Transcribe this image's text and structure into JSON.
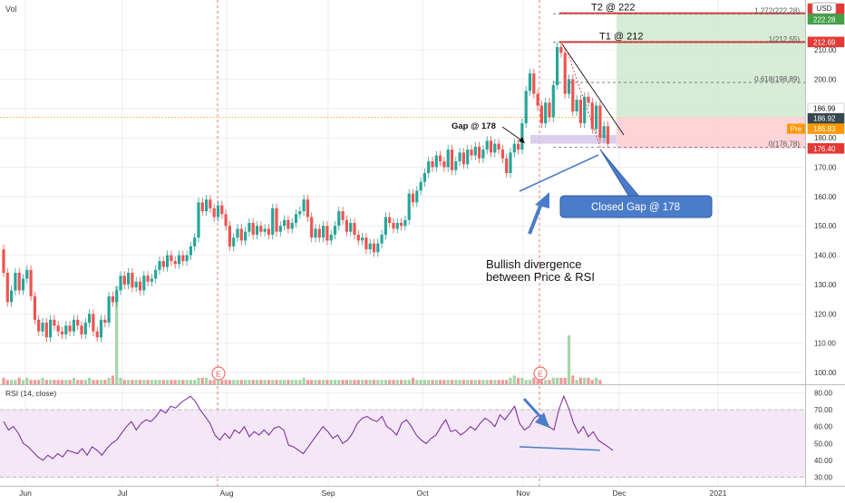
{
  "header": {
    "vol_label": "Vol",
    "currency": "USD"
  },
  "chart_data": {
    "type": "candlestick",
    "x_tick_labels": [
      "Jun",
      "Jul",
      "Aug",
      "Sep",
      "Oct",
      "Nov",
      "Dec",
      "2021"
    ],
    "y_tick_labels": [
      "100.00",
      "110.00",
      "120.00",
      "130.00",
      "140.00",
      "150.00",
      "160.00",
      "170.00",
      "180.00",
      "190.00",
      "200.00",
      "210.00"
    ],
    "ylim": [
      96,
      227
    ],
    "grid": true,
    "candles": [
      [
        142,
        134
      ],
      [
        134,
        124
      ],
      [
        124,
        128
      ],
      [
        128,
        134
      ],
      [
        134,
        128
      ],
      [
        128,
        132
      ],
      [
        132,
        135
      ],
      [
        135,
        126
      ],
      [
        126,
        118
      ],
      [
        118,
        114
      ],
      [
        114,
        117
      ],
      [
        117,
        112
      ],
      [
        112,
        118
      ],
      [
        118,
        116
      ],
      [
        116,
        114
      ],
      [
        114,
        113
      ],
      [
        113,
        116
      ],
      [
        116,
        114
      ],
      [
        114,
        118
      ],
      [
        118,
        116
      ],
      [
        116,
        113
      ],
      [
        113,
        117
      ],
      [
        117,
        120
      ],
      [
        120,
        114
      ],
      [
        114,
        112
      ],
      [
        112,
        118
      ],
      [
        118,
        117
      ],
      [
        117,
        126
      ],
      [
        126,
        124
      ],
      [
        124,
        128
      ],
      [
        128,
        133
      ],
      [
        133,
        130
      ],
      [
        130,
        134
      ],
      [
        134,
        129
      ],
      [
        129,
        131
      ],
      [
        131,
        128
      ],
      [
        128,
        133
      ],
      [
        133,
        131
      ],
      [
        131,
        132
      ],
      [
        132,
        135
      ],
      [
        135,
        138
      ],
      [
        138,
        136
      ],
      [
        136,
        140
      ],
      [
        140,
        138
      ],
      [
        138,
        137
      ],
      [
        137,
        140
      ],
      [
        140,
        138
      ],
      [
        138,
        140
      ],
      [
        140,
        143
      ],
      [
        143,
        146
      ],
      [
        146,
        158
      ],
      [
        158,
        155
      ],
      [
        155,
        159
      ],
      [
        159,
        156
      ],
      [
        156,
        153
      ],
      [
        153,
        157
      ],
      [
        157,
        154
      ],
      [
        154,
        150
      ],
      [
        150,
        143
      ],
      [
        143,
        146
      ],
      [
        146,
        149
      ],
      [
        149,
        145
      ],
      [
        145,
        148
      ],
      [
        148,
        151
      ],
      [
        151,
        147
      ],
      [
        147,
        150
      ],
      [
        150,
        148
      ],
      [
        148,
        149
      ],
      [
        149,
        147
      ],
      [
        147,
        156
      ],
      [
        156,
        148
      ],
      [
        148,
        150
      ],
      [
        150,
        152
      ],
      [
        152,
        149
      ],
      [
        149,
        151
      ],
      [
        151,
        154
      ],
      [
        154,
        155
      ],
      [
        155,
        159
      ],
      [
        159,
        153
      ],
      [
        153,
        146
      ],
      [
        146,
        149
      ],
      [
        149,
        146
      ],
      [
        146,
        150
      ],
      [
        150,
        145
      ],
      [
        145,
        147
      ],
      [
        147,
        150
      ],
      [
        150,
        155
      ],
      [
        155,
        152
      ],
      [
        152,
        148
      ],
      [
        148,
        151
      ],
      [
        151,
        147
      ],
      [
        147,
        145
      ],
      [
        145,
        146
      ],
      [
        146,
        142
      ],
      [
        142,
        144
      ],
      [
        144,
        141
      ],
      [
        141,
        144
      ],
      [
        144,
        147
      ],
      [
        147,
        153
      ],
      [
        153,
        151
      ],
      [
        151,
        149
      ],
      [
        149,
        151
      ],
      [
        151,
        150
      ],
      [
        150,
        152
      ],
      [
        152,
        161
      ],
      [
        161,
        158
      ],
      [
        158,
        162
      ],
      [
        162,
        165
      ],
      [
        165,
        168
      ],
      [
        168,
        172
      ],
      [
        172,
        170
      ],
      [
        170,
        174
      ],
      [
        174,
        172
      ],
      [
        172,
        170
      ],
      [
        170,
        176
      ],
      [
        176,
        169
      ],
      [
        169,
        172
      ],
      [
        172,
        175
      ],
      [
        175,
        171
      ],
      [
        171,
        176
      ],
      [
        176,
        174
      ],
      [
        174,
        177
      ],
      [
        177,
        173
      ],
      [
        173,
        176
      ],
      [
        176,
        179
      ],
      [
        179,
        175
      ],
      [
        175,
        178
      ],
      [
        178,
        176
      ],
      [
        176,
        173
      ],
      [
        173,
        168
      ],
      [
        168,
        175
      ],
      [
        175,
        178
      ],
      [
        178,
        176
      ],
      [
        176,
        185
      ],
      [
        185,
        196
      ],
      [
        196,
        202
      ],
      [
        202,
        195
      ],
      [
        195,
        191
      ],
      [
        191,
        185
      ],
      [
        185,
        192
      ],
      [
        192,
        187
      ],
      [
        187,
        198
      ],
      [
        198,
        211
      ],
      [
        211,
        209
      ],
      [
        209,
        195
      ],
      [
        195,
        200
      ],
      [
        200,
        189
      ],
      [
        189,
        193
      ],
      [
        193,
        185
      ],
      [
        185,
        194
      ],
      [
        194,
        192
      ],
      [
        192,
        183
      ],
      [
        183,
        191
      ],
      [
        191,
        180
      ],
      [
        180,
        184
      ],
      [
        184,
        178
      ]
    ],
    "volumes": [
      3,
      2,
      2,
      2,
      3,
      2,
      3,
      2,
      2,
      2,
      3,
      2,
      2,
      2,
      2,
      2,
      2,
      2,
      3,
      2,
      2,
      2,
      3,
      2,
      2,
      2,
      2,
      3,
      4,
      3,
      3,
      2,
      2,
      2,
      2,
      2,
      2,
      2,
      2,
      2,
      2,
      2,
      2,
      2,
      2,
      2,
      2,
      2,
      2,
      2,
      3,
      3,
      3,
      2,
      2,
      2,
      2,
      2,
      2,
      2,
      2,
      2,
      2,
      2,
      2,
      2,
      2,
      2,
      2,
      2,
      2,
      2,
      2,
      2,
      2,
      2,
      2,
      3,
      2,
      2,
      2,
      2,
      2,
      2,
      2,
      2,
      2,
      2,
      2,
      2,
      2,
      2,
      2,
      2,
      2,
      2,
      2,
      2,
      2,
      2,
      2,
      2,
      2,
      2,
      2,
      3,
      2,
      2,
      2,
      2,
      2,
      2,
      2,
      2,
      2,
      2,
      2,
      2,
      2,
      2,
      2,
      2,
      2,
      2,
      2,
      2,
      2,
      2,
      2,
      2,
      3,
      4,
      3,
      3,
      2,
      2,
      3,
      2,
      2,
      2,
      2,
      3,
      3,
      3,
      3,
      3,
      4,
      2,
      3,
      3,
      3,
      2,
      3,
      2
    ],
    "volume_spikes": [
      {
        "index": 29,
        "volume": 18
      },
      {
        "index": 145,
        "volume": 9
      }
    ],
    "rsi": {
      "label": "RSI (14, close)",
      "ylim": [
        26,
        84
      ],
      "y_tick_labels": [
        "30.00",
        "40.00",
        "50.00",
        "60.00",
        "70.00",
        "80.00"
      ],
      "band": [
        30,
        70
      ],
      "values": [
        63,
        58,
        60,
        56,
        50,
        48,
        45,
        42,
        40,
        43,
        41,
        44,
        42,
        46,
        45,
        44,
        47,
        43,
        48,
        46,
        43,
        47,
        50,
        52,
        56,
        60,
        63,
        58,
        62,
        64,
        63,
        66,
        70,
        68,
        72,
        71,
        74,
        76,
        78,
        75,
        70,
        66,
        62,
        55,
        52,
        56,
        53,
        58,
        56,
        60,
        54,
        57,
        55,
        58,
        55,
        59,
        60,
        58,
        49,
        48,
        46,
        44,
        48,
        52,
        56,
        60,
        57,
        53,
        55,
        50,
        52,
        56,
        62,
        65,
        66,
        64,
        63,
        66,
        60,
        58,
        55,
        62,
        64,
        60,
        55,
        52,
        50,
        53,
        55,
        60,
        64,
        57,
        58,
        55,
        57,
        60,
        58,
        62,
        65,
        63,
        60,
        67,
        64,
        68,
        72,
        62,
        58,
        60,
        65,
        67,
        66,
        60,
        58,
        70,
        78,
        71,
        62,
        56,
        60,
        54,
        57,
        52,
        50,
        48,
        46
      ]
    },
    "levels": [
      {
        "label": "T2 @ 222",
        "value": 222.48
      },
      {
        "label": "T1 @ 212",
        "value": 212.69
      }
    ],
    "fib_levels": [
      {
        "label": "1.272(222.28)",
        "value": 222.28
      },
      {
        "label": "1(212.55)",
        "value": 212.55
      },
      {
        "label": "0.618(198.89)",
        "value": 198.89
      },
      {
        "label": "0(176.78)",
        "value": 176.78
      }
    ],
    "price_labels": [
      {
        "text": "222.48",
        "value": 222.48,
        "color": "#e53935"
      },
      {
        "text": "222.28",
        "value": 222.28,
        "color": "#43a047"
      },
      {
        "text": "212.69",
        "value": 212.69,
        "color": "#e53935"
      },
      {
        "text": "186.99",
        "value": 186.99,
        "color": "#ffffff"
      },
      {
        "text": "186.92",
        "value": 186.92,
        "color": "#37474f"
      },
      {
        "text": "186.83",
        "value": 186.83,
        "color": "#ff9800"
      },
      {
        "text": "176.40",
        "value": 176.4,
        "color": "#e53935"
      }
    ],
    "pre_label": "Pre",
    "events": [
      "E",
      "E"
    ],
    "annotations": {
      "gap": "Gap @ 178",
      "closed_gap": "Closed Gap @ 178",
      "divergence_line1": "Bullish divergence",
      "divergence_line2": "between Price & RSI"
    },
    "colors": {
      "up": "#26a69a",
      "down": "#ef5350",
      "rsi": "#7b1fa2",
      "target": "#e53935",
      "profit_zone": "#c8e6c9",
      "loss_zone": "#ffcdd2",
      "annotation": "#4a7cc9"
    }
  }
}
